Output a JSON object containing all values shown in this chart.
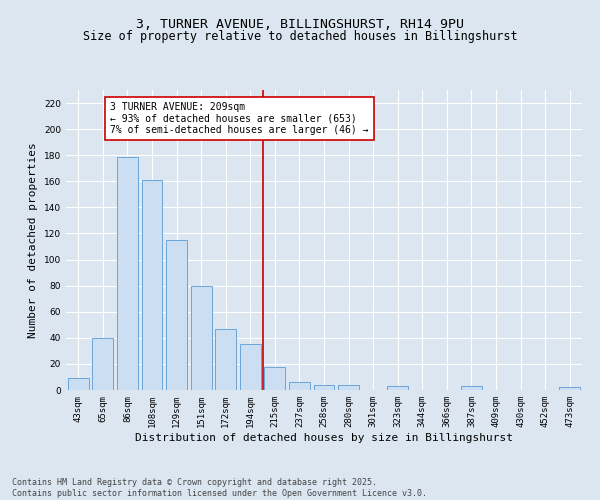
{
  "title_line1": "3, TURNER AVENUE, BILLINGSHURST, RH14 9PU",
  "title_line2": "Size of property relative to detached houses in Billingshurst",
  "xlabel": "Distribution of detached houses by size in Billingshurst",
  "ylabel": "Number of detached properties",
  "categories": [
    "43sqm",
    "65sqm",
    "86sqm",
    "108sqm",
    "129sqm",
    "151sqm",
    "172sqm",
    "194sqm",
    "215sqm",
    "237sqm",
    "258sqm",
    "280sqm",
    "301sqm",
    "323sqm",
    "344sqm",
    "366sqm",
    "387sqm",
    "409sqm",
    "430sqm",
    "452sqm",
    "473sqm"
  ],
  "values": [
    9,
    40,
    179,
    161,
    115,
    80,
    47,
    35,
    18,
    6,
    4,
    4,
    0,
    3,
    0,
    0,
    3,
    0,
    0,
    0,
    2
  ],
  "bar_color": "#ccdff2",
  "bar_edge_color": "#5b9bd5",
  "background_color": "#dce6f1",
  "grid_color": "#ffffff",
  "vline_x": 7.5,
  "vline_color": "#cc0000",
  "annotation_text": "3 TURNER AVENUE: 209sqm\n← 93% of detached houses are smaller (653)\n7% of semi-detached houses are larger (46) →",
  "annotation_box_color": "#ffffff",
  "annotation_edge_color": "#cc0000",
  "ylim": [
    0,
    230
  ],
  "yticks": [
    0,
    20,
    40,
    60,
    80,
    100,
    120,
    140,
    160,
    180,
    200,
    220
  ],
  "footnote": "Contains HM Land Registry data © Crown copyright and database right 2025.\nContains public sector information licensed under the Open Government Licence v3.0.",
  "title_fontsize": 9.5,
  "subtitle_fontsize": 8.5,
  "axis_label_fontsize": 8,
  "tick_fontsize": 6.5,
  "annotation_fontsize": 7,
  "footnote_fontsize": 6
}
